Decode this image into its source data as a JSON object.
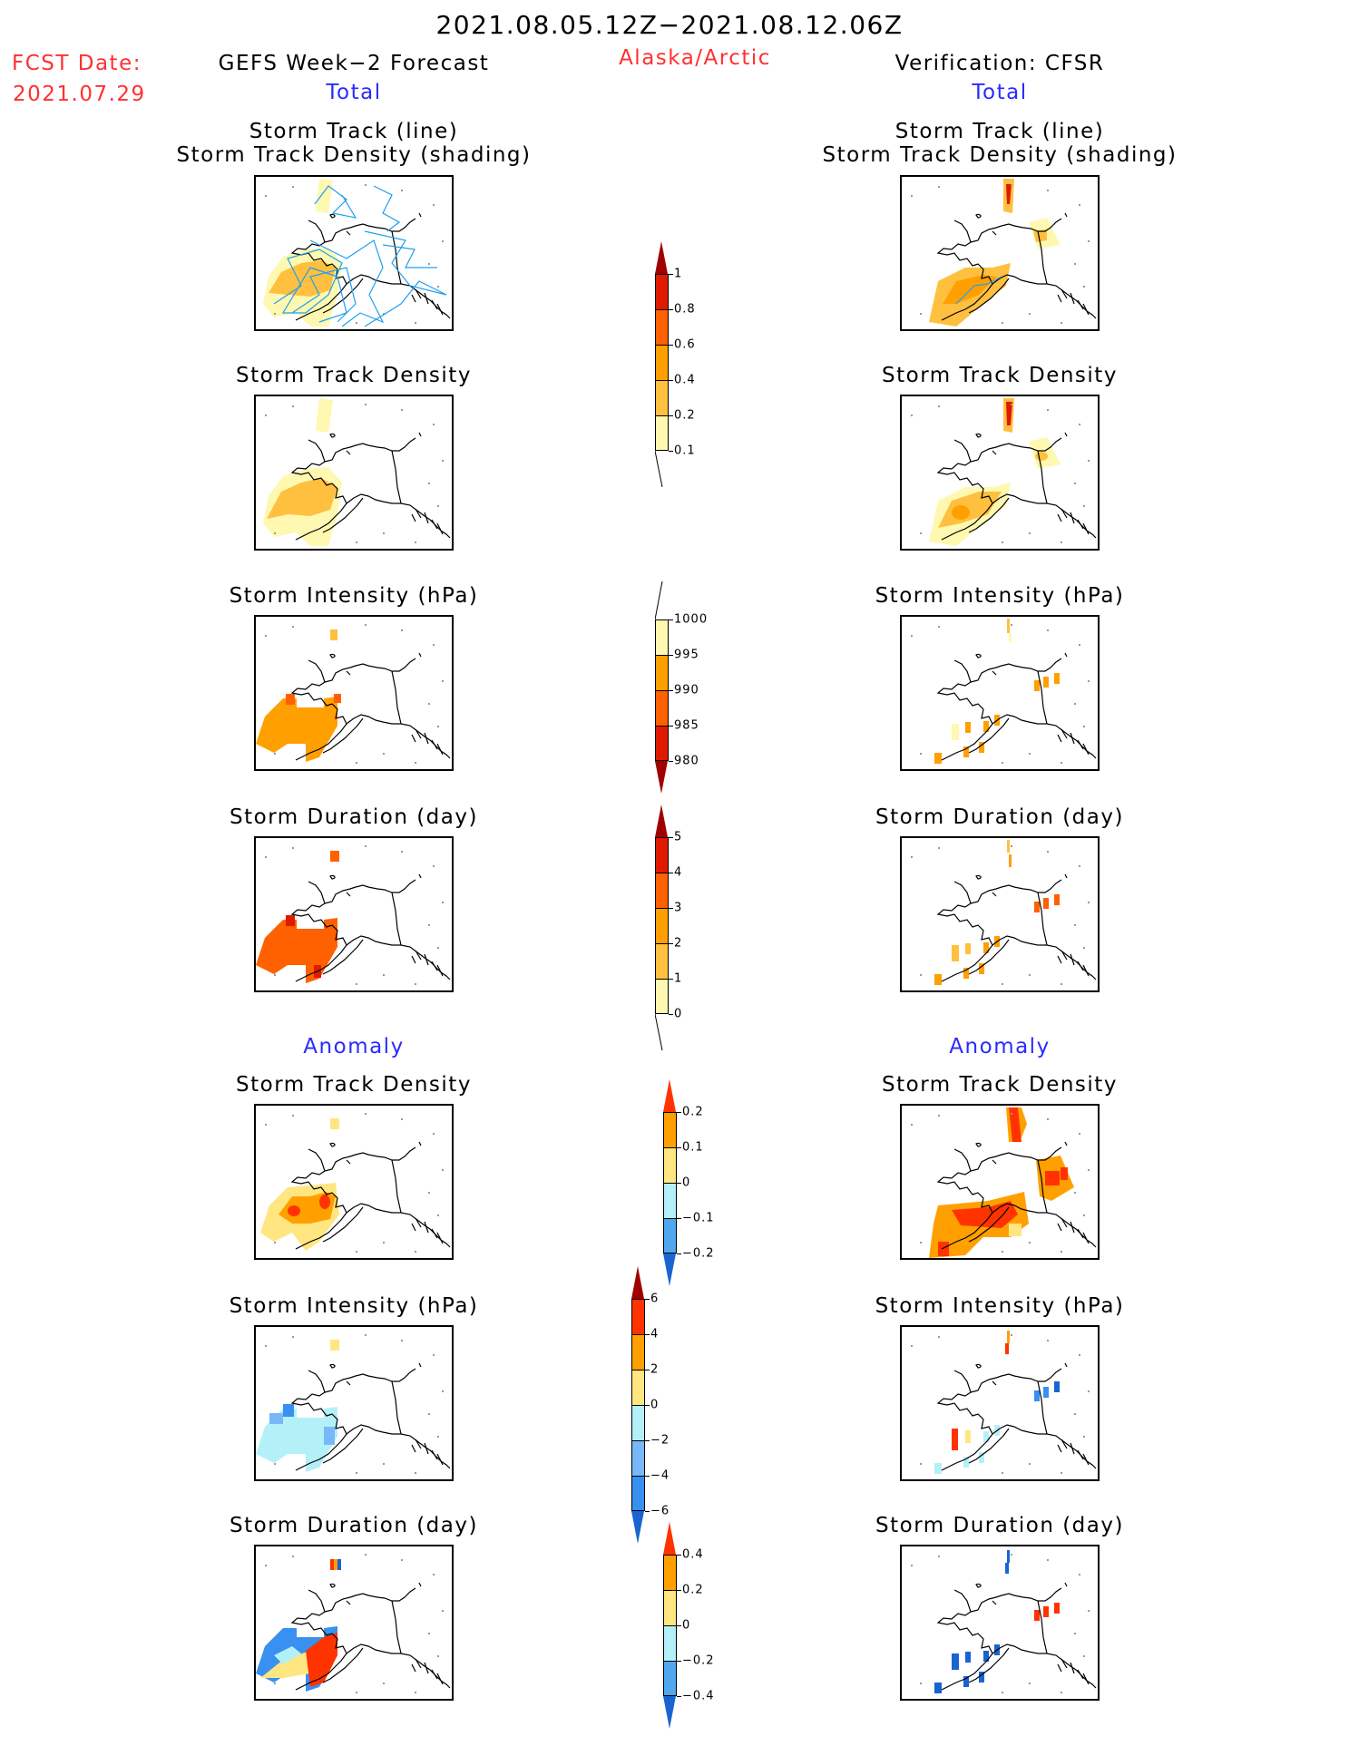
{
  "header": {
    "period": "2021.08.05.12Z−2021.08.12.06Z",
    "fcst_label": "FCST Date:",
    "fcst_date": "2021.07.29",
    "left_title": "GEFS Week−2 Forecast",
    "region": "Alaska/Arctic",
    "right_title": "Verification: CFSR",
    "left_section": "Total",
    "right_section": "Total",
    "left_anomaly": "Anomaly",
    "right_anomaly": "Anomaly"
  },
  "panels": {
    "track_line": "Storm Track (line)",
    "track_shading": "Storm Track Density (shading)",
    "density": "Storm Track Density",
    "intensity": "Storm Intensity (hPa)",
    "duration": "Storm Duration (day)"
  },
  "colorbars": [
    {
      "name": "total-density",
      "labels": [
        "1",
        "0.8",
        "0.6",
        "0.4",
        "0.2",
        "0.1"
      ],
      "colors": [
        "#e01a00",
        "#ff6000",
        "#ffa000",
        "#ffc040",
        "#fff8b0"
      ],
      "top_tip": "#a00000",
      "bottom_tip": null,
      "tail": "bottom"
    },
    {
      "name": "total-intensity",
      "labels": [
        "1000",
        "995",
        "990",
        "985",
        "980"
      ],
      "colors": [
        "#fff8b0",
        "#ffa000",
        "#ff6000",
        "#e01a00"
      ],
      "top_tip": null,
      "bottom_tip": "#a00000",
      "tail": "top"
    },
    {
      "name": "total-duration",
      "labels": [
        "5",
        "4",
        "3",
        "2",
        "1",
        "0"
      ],
      "colors": [
        "#e01a00",
        "#ff6000",
        "#ffa000",
        "#ffc040",
        "#fff8b0"
      ],
      "top_tip": "#a00000",
      "bottom_tip": null,
      "tail": "bottom"
    },
    {
      "name": "anomaly-density",
      "labels": [
        "0.2",
        "0.1",
        "0",
        "−0.1",
        "−0.2"
      ],
      "colors": [
        "#ffa000",
        "#ffe680",
        "#b4f0f8",
        "#50a8f0"
      ],
      "top_tip": "#ff3300",
      "bottom_tip": "#1a64d2",
      "tail": null
    },
    {
      "name": "anomaly-intensity",
      "labels": [
        "6",
        "4",
        "2",
        "0",
        "−2",
        "−4",
        "−6"
      ],
      "colors": [
        "#ff3300",
        "#ffa000",
        "#ffe680",
        "#b4f0f8",
        "#78b8f8",
        "#3890f0"
      ],
      "top_tip": "#a00000",
      "bottom_tip": "#1a64d2",
      "tail": null
    },
    {
      "name": "anomaly-duration",
      "labels": [
        "0.4",
        "0.2",
        "0",
        "−0.2",
        "−0.4"
      ],
      "colors": [
        "#ffa000",
        "#ffe680",
        "#b4f0f8",
        "#50a8f0"
      ],
      "top_tip": "#ff3300",
      "bottom_tip": "#1a64d2",
      "tail": null
    }
  ]
}
